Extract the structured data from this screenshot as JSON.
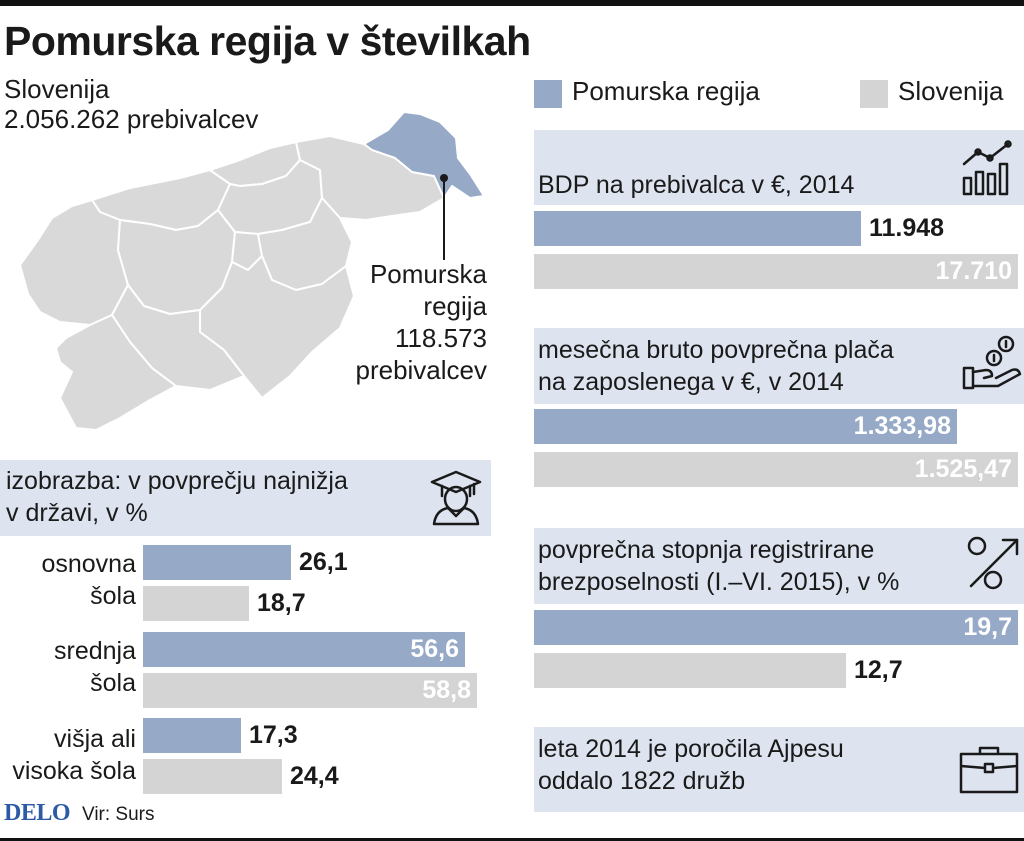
{
  "header": {
    "title": "Pomurska regija v številkah",
    "country": "Slovenija",
    "country_population": "2.056.262 prebivalcev"
  },
  "legend": {
    "pomurska": "Pomurska regija",
    "slovenija": "Slovenija",
    "colors": {
      "pomurska": "#96a9c7",
      "slovenija": "#d4d4d4",
      "panel": "#dde3ef"
    }
  },
  "map": {
    "region_name_line1": "Pomurska",
    "region_name_line2": "regija",
    "region_population_line1": "118.573",
    "region_population_line2": "prebivalcev"
  },
  "chart_data": [
    {
      "type": "bar",
      "title": "BDP na prebivalca v €, 2014",
      "icon": "chart-growth-icon",
      "series": [
        {
          "name": "Pomurska regija",
          "values": [
            11948
          ],
          "labels": [
            "11.948"
          ]
        },
        {
          "name": "Slovenija",
          "values": [
            17710
          ],
          "labels": [
            "17.710"
          ]
        }
      ],
      "xlim": [
        0,
        17710
      ]
    },
    {
      "type": "bar",
      "title_line1": "mesečna bruto povprečna plača",
      "title_line2": "na zaposlenega v €, v 2014",
      "icon": "hand-coins-icon",
      "series": [
        {
          "name": "Pomurska regija",
          "values": [
            1333.98
          ],
          "labels": [
            "1.333,98"
          ]
        },
        {
          "name": "Slovenija",
          "values": [
            1525.47
          ],
          "labels": [
            "1.525,47"
          ]
        }
      ],
      "xlim": [
        0,
        1525.47
      ]
    },
    {
      "type": "bar",
      "title_line1": "povprečna stopnja registrirane",
      "title_line2": "brezposelnosti (I.–VI. 2015), v %",
      "icon": "percent-icon",
      "series": [
        {
          "name": "Pomurska regija",
          "values": [
            19.7
          ],
          "labels": [
            "19,7"
          ]
        },
        {
          "name": "Slovenija",
          "values": [
            12.7
          ],
          "labels": [
            "12,7"
          ]
        }
      ],
      "xlim": [
        0,
        19.7
      ]
    },
    {
      "type": "bar",
      "title_line1": "izobrazba: v povprečju najnižja",
      "title_line2": "v državi, v %",
      "icon": "graduate-icon",
      "categories": [
        {
          "line1": "osnovna",
          "line2": "šola"
        },
        {
          "line1": "srednja",
          "line2": "šola"
        },
        {
          "line1": "višja ali",
          "line2": "visoka šola"
        }
      ],
      "series": [
        {
          "name": "Pomurska regija",
          "values": [
            26.1,
            56.6,
            17.3
          ],
          "labels": [
            "26,1",
            "56,6",
            "17,3"
          ]
        },
        {
          "name": "Slovenija",
          "values": [
            18.7,
            58.8,
            24.4
          ],
          "labels": [
            "18,7",
            "58,8",
            "24,4"
          ]
        }
      ],
      "xlim": [
        0,
        60
      ]
    }
  ],
  "note": {
    "line1": "leta 2014 je poročila Ajpesu",
    "line2": "oddalo 1822 družb",
    "icon": "briefcase-icon"
  },
  "footer": {
    "brand": "DELO",
    "source": "Vir: Surs"
  }
}
